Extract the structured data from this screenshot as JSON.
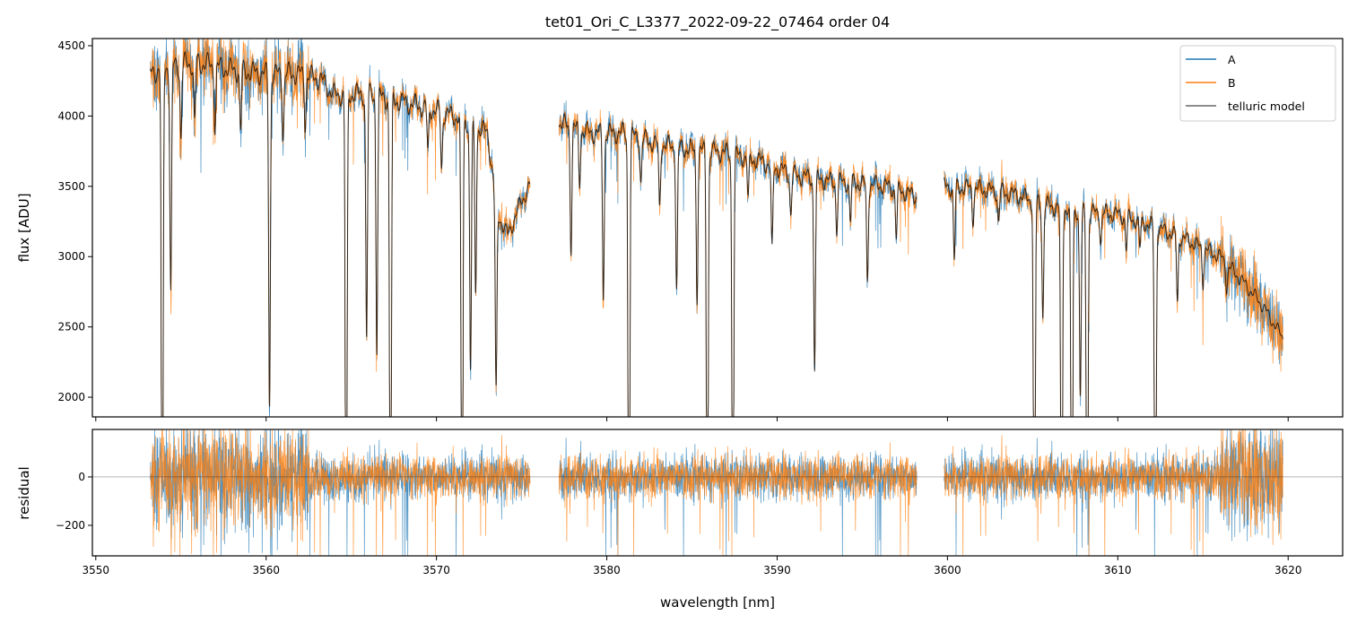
{
  "chart_data": {
    "type": "line",
    "title": "tet01_Ori_C_L3377_2022-09-22_07464  order 04",
    "xlabel": "wavelength [nm]",
    "top_panel": {
      "ylabel": "flux [ADU]",
      "xlim": [
        3549.8,
        3623.2
      ],
      "ylim": [
        1860,
        4551
      ],
      "yticks": [
        2000,
        2500,
        3000,
        3500,
        4000,
        4500
      ],
      "legend": {
        "placement": "top-right",
        "entries": [
          "A",
          "B",
          "telluric model"
        ]
      }
    },
    "bottom_panel": {
      "ylabel": "residual",
      "ylim": [
        -326,
        196
      ],
      "yticks": [
        0,
        -200
      ],
      "ytick_labels": [
        "0",
        "−200"
      ],
      "zero_line": 0
    },
    "xticks": [
      3550,
      3560,
      3570,
      3580,
      3590,
      3600,
      3610,
      3620
    ],
    "series_colors": {
      "A": "#1f77b4",
      "B": "#ff7f0e",
      "telluric model": "#000000"
    },
    "segments": [
      {
        "range": [
          3553.2,
          3575.5
        ],
        "continuum": [
          [
            3553.2,
            4300
          ],
          [
            3554,
            4350
          ],
          [
            3556,
            4380
          ],
          [
            3558,
            4330
          ],
          [
            3560,
            4300
          ],
          [
            3562,
            4300
          ],
          [
            3563.2,
            4260
          ],
          [
            3564,
            4150
          ],
          [
            3566,
            4160
          ],
          [
            3568,
            4100
          ],
          [
            3570,
            4040
          ],
          [
            3571.5,
            3980
          ],
          [
            3573,
            3880
          ],
          [
            3573.6,
            3300
          ],
          [
            3574.2,
            3150
          ],
          [
            3575.0,
            3400
          ],
          [
            3575.5,
            3500
          ]
        ]
      },
      {
        "range": [
          3577.2,
          3598.2
        ],
        "continuum": [
          [
            3577.2,
            3950
          ],
          [
            3579,
            3880
          ],
          [
            3581,
            3880
          ],
          [
            3583,
            3800
          ],
          [
            3585,
            3760
          ],
          [
            3587,
            3740
          ],
          [
            3589,
            3680
          ],
          [
            3591,
            3580
          ],
          [
            3593,
            3540
          ],
          [
            3595,
            3520
          ],
          [
            3596.5,
            3500
          ],
          [
            3598.2,
            3430
          ]
        ]
      },
      {
        "range": [
          3599.8,
          3619.7
        ],
        "continuum": [
          [
            3599.8,
            3500
          ],
          [
            3602,
            3480
          ],
          [
            3604,
            3440
          ],
          [
            3606,
            3360
          ],
          [
            3608,
            3320
          ],
          [
            3610,
            3300
          ],
          [
            3612,
            3220
          ],
          [
            3614,
            3120
          ],
          [
            3616,
            3000
          ],
          [
            3617.5,
            2800
          ],
          [
            3618.5,
            2650
          ],
          [
            3619.7,
            2420
          ]
        ]
      }
    ],
    "absorption_lines": [
      [
        3553.9,
        0.98
      ],
      [
        3554.4,
        0.37
      ],
      [
        3555.0,
        0.12
      ],
      [
        3555.8,
        0.1
      ],
      [
        3557.0,
        0.1
      ],
      [
        3558.5,
        0.1
      ],
      [
        3560.2,
        0.55
      ],
      [
        3561.0,
        0.1
      ],
      [
        3562.3,
        0.08
      ],
      [
        3564.7,
        0.98
      ],
      [
        3565.9,
        0.42
      ],
      [
        3566.5,
        0.44
      ],
      [
        3567.3,
        0.98
      ],
      [
        3569.5,
        0.08
      ],
      [
        3570.3,
        0.1
      ],
      [
        3571.5,
        0.98
      ],
      [
        3572.0,
        0.45
      ],
      [
        3572.3,
        0.3
      ],
      [
        3573.5,
        0.4
      ],
      [
        3577.9,
        0.22
      ],
      [
        3578.4,
        0.1
      ],
      [
        3579.8,
        0.3
      ],
      [
        3581.3,
        0.98
      ],
      [
        3582.0,
        0.08
      ],
      [
        3583.1,
        0.12
      ],
      [
        3584.1,
        0.27
      ],
      [
        3585.3,
        0.28
      ],
      [
        3585.9,
        0.98
      ],
      [
        3587.4,
        0.98
      ],
      [
        3588.3,
        0.08
      ],
      [
        3589.7,
        0.17
      ],
      [
        3590.8,
        0.08
      ],
      [
        3592.2,
        0.38
      ],
      [
        3593.5,
        0.1
      ],
      [
        3594.3,
        0.08
      ],
      [
        3595.3,
        0.2
      ],
      [
        3597.0,
        0.1
      ],
      [
        3600.4,
        0.15
      ],
      [
        3601.5,
        0.06
      ],
      [
        3603.0,
        0.06
      ],
      [
        3605.1,
        0.98
      ],
      [
        3605.6,
        0.24
      ],
      [
        3606.7,
        0.98
      ],
      [
        3607.3,
        0.98
      ],
      [
        3607.8,
        0.4
      ],
      [
        3608.2,
        0.98
      ],
      [
        3609.0,
        0.06
      ],
      [
        3610.5,
        0.07
      ],
      [
        3611.3,
        0.06
      ],
      [
        3612.2,
        0.98
      ],
      [
        3613.5,
        0.15
      ],
      [
        3615.0,
        0.08
      ],
      [
        3616.4,
        0.06
      ]
    ],
    "noisy_residual_regions": [
      [
        3553.3,
        3562.5
      ],
      [
        3616.0,
        3619.7
      ]
    ]
  }
}
